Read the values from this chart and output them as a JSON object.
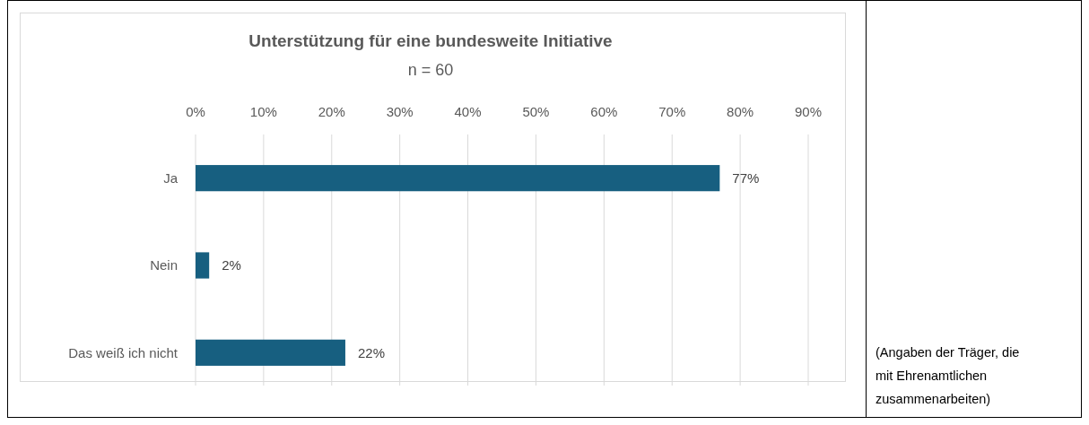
{
  "chart_data": {
    "type": "bar",
    "orientation": "horizontal",
    "title": "Unterstützung für eine bundesweite Initiative",
    "subtitle": "n = 60",
    "categories": [
      "Ja",
      "Nein",
      "Das weiß ich nicht"
    ],
    "values": [
      77,
      2,
      22
    ],
    "value_labels": [
      "77%",
      "2%",
      "22%"
    ],
    "color": "#175f80",
    "xlim": [
      0,
      90
    ],
    "xticks": [
      {
        "value": 0,
        "label": "0%"
      },
      {
        "value": 10,
        "label": "10%"
      },
      {
        "value": 20,
        "label": "20%"
      },
      {
        "value": 30,
        "label": "30%"
      },
      {
        "value": 40,
        "label": "40%"
      },
      {
        "value": 50,
        "label": "50%"
      },
      {
        "value": 60,
        "label": "60%"
      },
      {
        "value": 70,
        "label": "70%"
      },
      {
        "value": 80,
        "label": "80%"
      },
      {
        "value": 90,
        "label": "90%"
      }
    ],
    "grid": "x",
    "annotations": [
      "(Angaben der Träger, die mit Ehrenamtlichen zusammenarbeiten)"
    ]
  }
}
